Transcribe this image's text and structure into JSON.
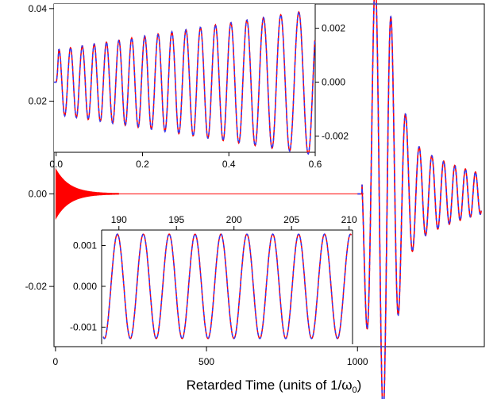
{
  "chart_data": [
    {
      "type": "line",
      "panel": "main",
      "xlabel": "Retarded Time (units of 1/ω",
      "xlabel_sub": "0",
      "xlabel_close": ")",
      "xlim": [
        -5,
        1420
      ],
      "ylim": [
        -0.033,
        0.041
      ],
      "x_ticks": [
        0,
        500,
        1000
      ],
      "x_tick_labels": [
        "0",
        "500",
        "1000"
      ],
      "y_ticks": [
        0.04,
        0.02,
        0.0,
        -0.02
      ],
      "y_tick_labels": [
        "0.04",
        "0.02",
        "0.00",
        "-0.02"
      ],
      "grid": false,
      "series": [
        {
          "color": "#ff0000",
          "style": "solid",
          "description_points": {
            "early_burst": {
              "x_start": 0,
              "envelope_peak": 0.0055,
              "decay_until": 210,
              "oscillation": "rapid"
            },
            "late_signal": {
              "x_start": 1020,
              "x_end": 1400,
              "samples": [
                [
                  1000,
                  0.0
                ],
                [
                  1020,
                  0.002
                ],
                [
                  1050,
                  -0.026
                ],
                [
                  1080,
                  0.0365
                ],
                [
                  1110,
                  -0.0175
                ],
                [
                  1135,
                  0.0215
                ],
                [
                  1160,
                  -0.0185
                ],
                [
                  1185,
                  0.0165
                ],
                [
                  1210,
                  -0.015
                ],
                [
                  1260,
                  0.011
                ],
                [
                  1320,
                  -0.007
                ],
                [
                  1400,
                  0.004
                ]
              ]
            }
          }
        },
        {
          "color": "#2a3cff",
          "style": "dashed",
          "overlays": "late_signal"
        }
      ]
    },
    {
      "type": "line",
      "panel": "inset-top",
      "xlim": [
        -0.005,
        0.6
      ],
      "ylim": [
        -0.0026,
        0.0029
      ],
      "x_ticks": [
        0.0,
        0.2,
        0.4,
        0.6
      ],
      "x_tick_labels": [
        "0.0",
        "0.2",
        "0.4",
        "0.6"
      ],
      "y_ticks": [
        0.002,
        0.0,
        -0.002
      ],
      "y_tick_labels": [
        "0.002",
        "0.000",
        "-0.002"
      ],
      "y_axis_side": "right",
      "series": [
        {
          "color": "#ff0000",
          "style": "solid"
        },
        {
          "color": "#2a3cff",
          "style": "dashed"
        }
      ],
      "samples": [
        [
          0.0,
          0.0
        ],
        [
          0.02,
          0.0011
        ],
        [
          0.035,
          -0.0011
        ],
        [
          0.058,
          0.0014
        ],
        [
          0.08,
          -0.0013
        ],
        [
          0.11,
          0.0017
        ],
        [
          0.145,
          -0.0016
        ],
        [
          0.19,
          0.002
        ],
        [
          0.235,
          -0.0019
        ],
        [
          0.285,
          0.0023
        ],
        [
          0.345,
          -0.0022
        ],
        [
          0.4,
          0.0025
        ],
        [
          0.465,
          -0.0024
        ],
        [
          0.535,
          0.0026
        ],
        [
          0.6,
          -0.0022
        ]
      ]
    },
    {
      "type": "line",
      "panel": "inset-bottom",
      "xlim": [
        188.5,
        210.3
      ],
      "ylim": [
        -0.00142,
        0.00138
      ],
      "x_ticks": [
        190,
        195,
        200,
        205,
        210
      ],
      "x_tick_labels": [
        "190",
        "195",
        "200",
        "205",
        "210"
      ],
      "y_ticks": [
        0.001,
        0.0,
        -0.001
      ],
      "y_tick_labels": [
        "0.001",
        "0.000",
        "-0.001"
      ],
      "x_axis_side": "top",
      "series": [
        {
          "color": "#ff0000",
          "style": "solid"
        },
        {
          "color": "#2a3cff",
          "style": "dashed"
        }
      ],
      "period": 2.25,
      "amplitude": 0.00128
    }
  ]
}
